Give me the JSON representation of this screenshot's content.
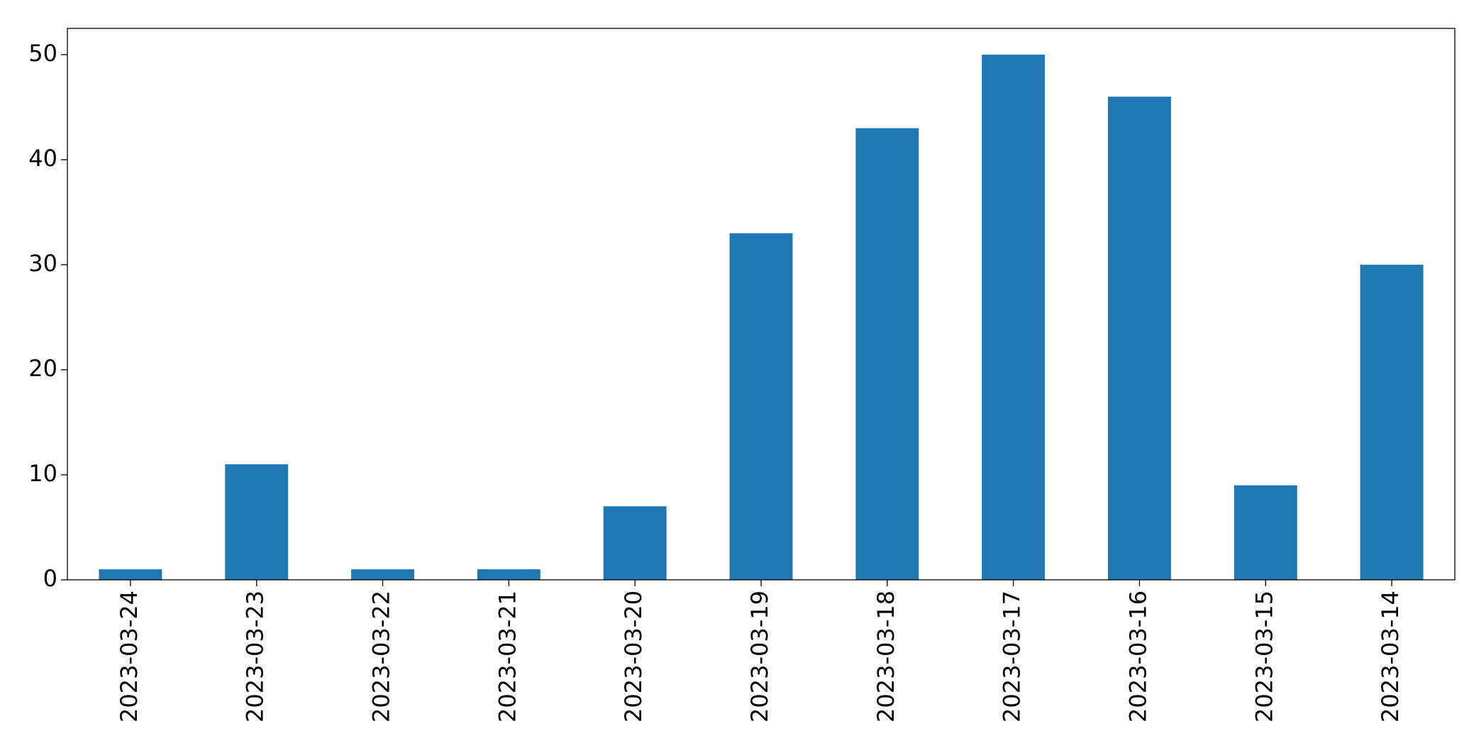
{
  "chart_data": {
    "type": "bar",
    "categories": [
      "2023-03-24",
      "2023-03-23",
      "2023-03-22",
      "2023-03-21",
      "2023-03-20",
      "2023-03-19",
      "2023-03-18",
      "2023-03-17",
      "2023-03-16",
      "2023-03-15",
      "2023-03-14"
    ],
    "values": [
      1,
      11,
      1,
      1,
      7,
      33,
      43,
      50,
      46,
      9,
      30
    ],
    "color": "#1f77b4",
    "ylim": [
      0,
      52.5
    ],
    "yticks": [
      0,
      10,
      20,
      30,
      40,
      50
    ],
    "grid": false
  }
}
